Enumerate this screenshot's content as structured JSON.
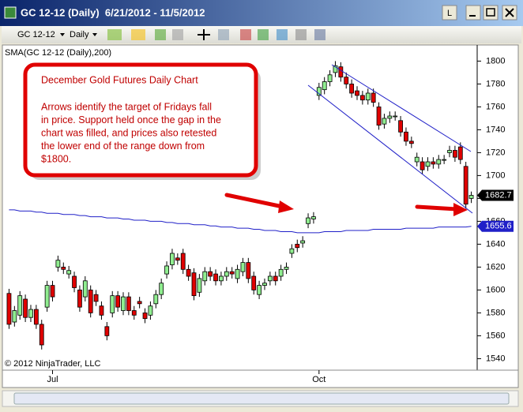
{
  "window": {
    "title": "GC 12-12 (Daily)  6/21/2012 - 11/5/2012"
  },
  "toolbar": {
    "instrument": "GC 12-12",
    "period": "Daily"
  },
  "chart_data": {
    "type": "candlestick",
    "indicator_label": "SMA(GC 12-12 (Daily),200)",
    "copyright": "© 2012 NinjaTrader, LLC",
    "annotation": {
      "title": "December Gold Futures Daily Chart",
      "lines": [
        "Arrows identify the target of Fridays fall",
        "in price. Support held once the gap in the",
        "chart was filled, and prices also retested",
        "the lower end of the range down from",
        "$1800."
      ]
    },
    "categories": [
      null,
      null,
      null,
      null,
      null,
      null,
      null,
      null,
      "Jul",
      null,
      null,
      null,
      null,
      null,
      null,
      null,
      null,
      null,
      null,
      null,
      null,
      null,
      null,
      null,
      null,
      null,
      null,
      null,
      null,
      null,
      null,
      null,
      null,
      null,
      null,
      null,
      null,
      null,
      null,
      null,
      null,
      null,
      null,
      null,
      null,
      null,
      null,
      null,
      null,
      null,
      null,
      null,
      null,
      null,
      null,
      null,
      null,
      "Oct",
      null,
      null,
      null,
      null,
      null,
      null,
      null,
      null,
      null,
      null,
      null,
      null,
      null,
      null,
      null,
      null,
      null,
      null,
      null,
      null,
      null,
      null,
      null,
      null,
      null,
      null,
      null,
      null
    ],
    "up_color": "#90ee90",
    "down_color": "#e00000",
    "open": [
      1597,
      1572,
      1578,
      1592,
      1576,
      1583,
      1570,
      1585,
      1604,
      1620,
      1620,
      1614,
      1612,
      1600,
      1594,
      1600,
      1596,
      1586,
      1568,
      1580,
      1595,
      1582,
      1594,
      1582,
      1590,
      1580,
      1578,
      1588,
      1596,
      1614,
      1622,
      1628,
      1632,
      1618,
      1615,
      1598,
      1608,
      1616,
      1614,
      1608,
      1612,
      1616,
      1610,
      1616,
      1624,
      1612,
      1596,
      1604,
      1608,
      1612,
      1612,
      1618,
      1632,
      1640,
      1641,
      1658,
      1662,
      1770,
      1775,
      1782,
      1790,
      1795,
      1786,
      1780,
      1774,
      1770,
      1766,
      1772,
      1760,
      1745,
      1750,
      1752,
      1748,
      1738,
      1730,
      1712,
      1712,
      1708,
      1712,
      1710,
      1714,
      1720,
      1722,
      1725,
      1708,
      1680
    ],
    "high": [
      1601,
      1586,
      1599,
      1596,
      1587,
      1587,
      1574,
      1608,
      1608,
      1630,
      1624,
      1621,
      1616,
      1604,
      1612,
      1604,
      1600,
      1590,
      1572,
      1599,
      1599,
      1598,
      1598,
      1586,
      1594,
      1584,
      1590,
      1600,
      1610,
      1625,
      1636,
      1632,
      1636,
      1622,
      1619,
      1614,
      1620,
      1620,
      1618,
      1616,
      1620,
      1620,
      1622,
      1628,
      1628,
      1616,
      1608,
      1610,
      1616,
      1616,
      1622,
      1624,
      1640,
      1644,
      1647,
      1667,
      1668,
      1781,
      1786,
      1792,
      1800,
      1799,
      1790,
      1784,
      1778,
      1774,
      1776,
      1776,
      1764,
      1754,
      1756,
      1756,
      1752,
      1742,
      1734,
      1720,
      1716,
      1716,
      1716,
      1718,
      1718,
      1726,
      1726,
      1729,
      1712,
      1686
    ],
    "low": [
      1566,
      1568,
      1574,
      1572,
      1572,
      1566,
      1548,
      1581,
      1590,
      1616,
      1614,
      1610,
      1598,
      1581,
      1590,
      1576,
      1586,
      1574,
      1556,
      1576,
      1581,
      1578,
      1578,
      1574,
      1584,
      1571,
      1574,
      1584,
      1592,
      1610,
      1618,
      1622,
      1614,
      1608,
      1591,
      1594,
      1604,
      1608,
      1604,
      1604,
      1608,
      1610,
      1606,
      1612,
      1606,
      1596,
      1592,
      1600,
      1604,
      1604,
      1608,
      1614,
      1628,
      1633,
      1637,
      1654,
      1658,
      1766,
      1771,
      1778,
      1786,
      1782,
      1776,
      1768,
      1766,
      1762,
      1762,
      1760,
      1740,
      1741,
      1746,
      1748,
      1734,
      1726,
      1724,
      1708,
      1701,
      1704,
      1706,
      1706,
      1710,
      1716,
      1712,
      1710,
      1671,
      1676
    ],
    "close": [
      1570,
      1582,
      1595,
      1576,
      1583,
      1570,
      1552,
      1604,
      1594,
      1626,
      1618,
      1617,
      1602,
      1585,
      1608,
      1580,
      1590,
      1578,
      1560,
      1595,
      1585,
      1594,
      1582,
      1578,
      1588,
      1575,
      1586,
      1596,
      1606,
      1621,
      1632,
      1626,
      1618,
      1612,
      1595,
      1610,
      1616,
      1612,
      1608,
      1612,
      1616,
      1614,
      1618,
      1624,
      1610,
      1600,
      1604,
      1606,
      1612,
      1608,
      1618,
      1620,
      1636,
      1637,
      1643,
      1663,
      1664,
      1777,
      1782,
      1788,
      1796,
      1786,
      1780,
      1772,
      1770,
      1766,
      1772,
      1764,
      1744,
      1750,
      1752,
      1752,
      1738,
      1730,
      1728,
      1716,
      1705,
      1712,
      1710,
      1714,
      1714,
      1722,
      1716,
      1714,
      1675,
      1682.7
    ],
    "sma": {
      "color": "#2020c8",
      "values": [
        1670,
        1670,
        1669,
        1669,
        1669,
        1668,
        1668,
        1667,
        1667,
        1667,
        1666,
        1666,
        1666,
        1665,
        1665,
        1664,
        1664,
        1664,
        1663,
        1663,
        1663,
        1662,
        1662,
        1661,
        1661,
        1661,
        1660,
        1660,
        1660,
        1659,
        1659,
        1658,
        1658,
        1658,
        1657,
        1657,
        1657,
        1656,
        1656,
        1655,
        1655,
        1655,
        1654,
        1654,
        1654,
        1653,
        1653,
        1652,
        1652,
        1652,
        1651,
        1651,
        1651,
        1650,
        1650,
        1650,
        1650,
        1650,
        1651,
        1651,
        1651,
        1651,
        1652,
        1652,
        1652,
        1652,
        1652,
        1653,
        1653,
        1653,
        1653,
        1653,
        1653,
        1654,
        1654,
        1654,
        1654,
        1654,
        1654,
        1655,
        1655,
        1655,
        1655,
        1655,
        1655,
        1655.6
      ]
    },
    "ylim": [
      1532,
      1812
    ],
    "yticks": [
      1540,
      1560,
      1580,
      1600,
      1620,
      1640,
      1660,
      1680,
      1700,
      1720,
      1740,
      1760,
      1780,
      1800
    ]
  }
}
